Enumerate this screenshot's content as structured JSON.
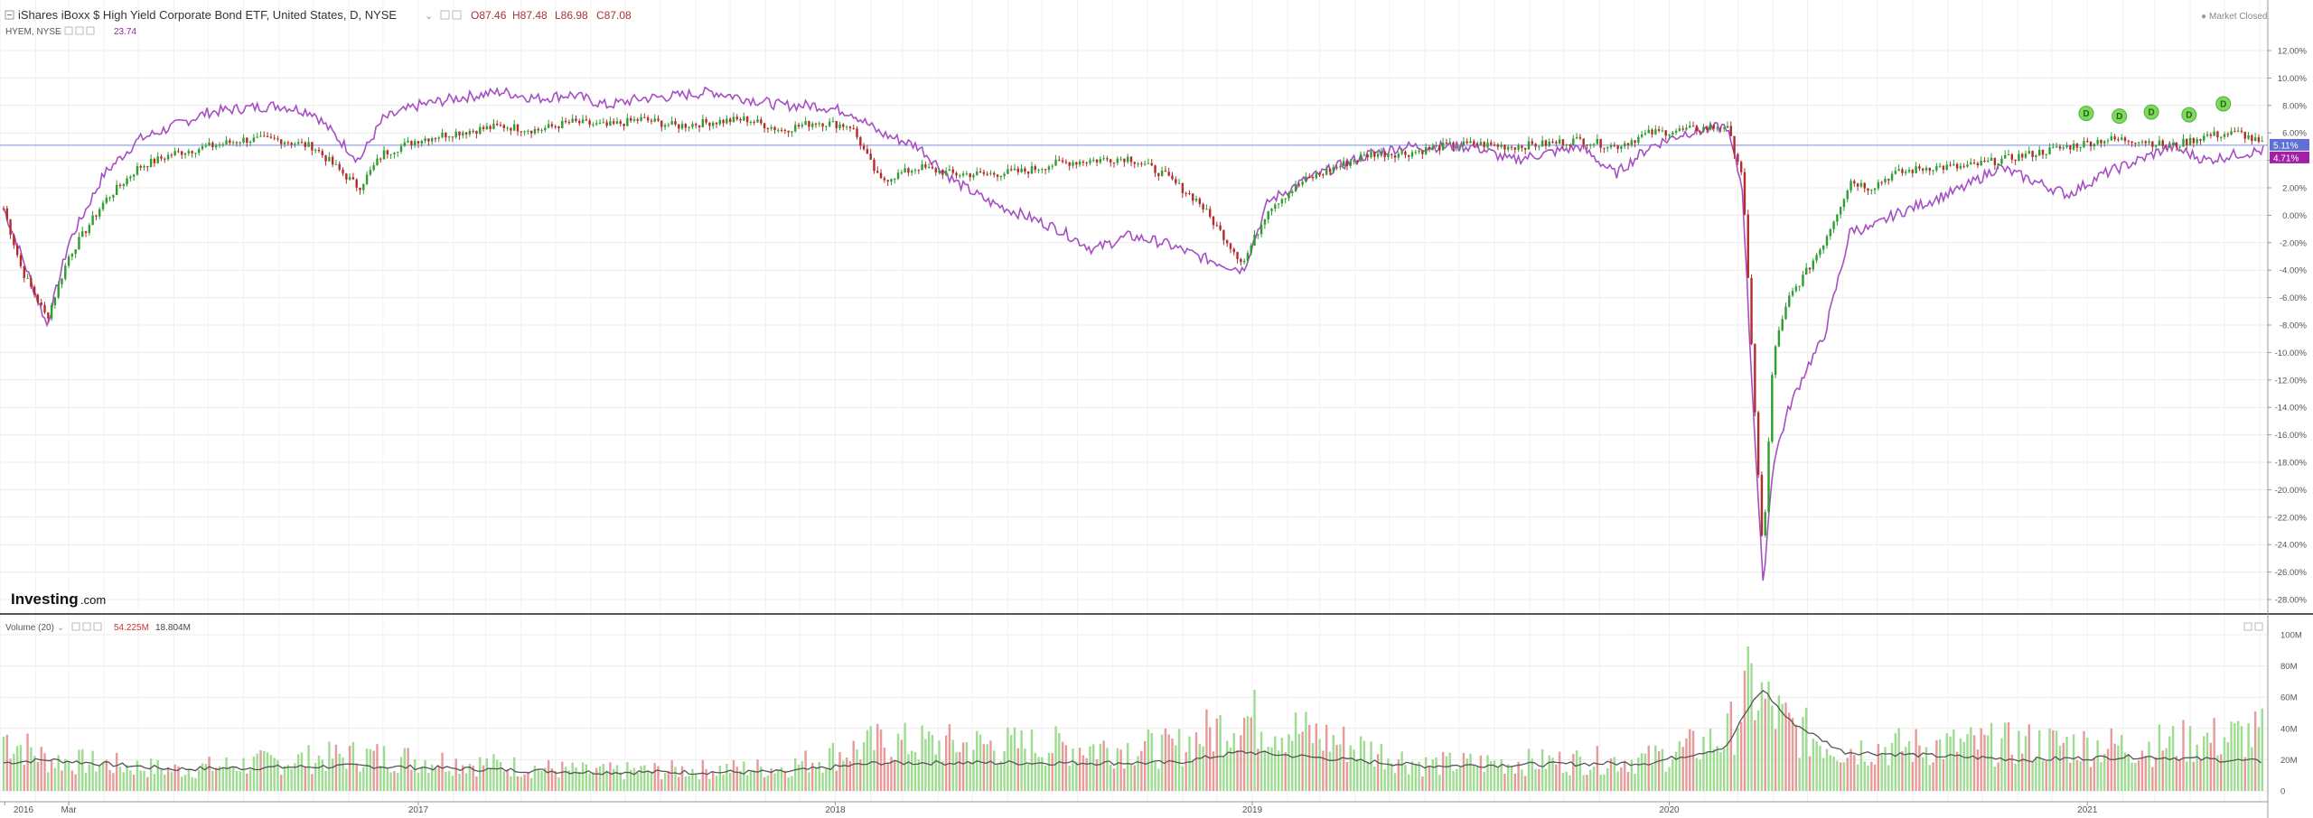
{
  "legend": {
    "main_title": "iShares iBoxx $ High Yield Corporate Bond ETF, United States, D, NYSE",
    "ohlc": {
      "o": "O87.46",
      "h": "H87.48",
      "l": "L86.98",
      "c": "C87.08"
    },
    "compare_label": "HYEM, NYSE",
    "compare_value": "23.74",
    "market_status": "Market Closed",
    "volume_label": "Volume (20)",
    "volume_value": "54.225M",
    "volume_ma_value": "18.804M"
  },
  "brand": {
    "bold": "Investing",
    "suffix": ".com"
  },
  "price_axis": {
    "ticks": [
      "12.00%",
      "10.00%",
      "8.00%",
      "6.00%",
      "4.00%",
      "2.00%",
      "0.00%",
      "-2.00%",
      "-4.00%",
      "-6.00%",
      "-8.00%",
      "-10.00%",
      "-12.00%",
      "-14.00%",
      "-16.00%",
      "-18.00%",
      "-20.00%",
      "-22.00%",
      "-24.00%",
      "-26.00%",
      "-28.00%"
    ],
    "last_main": "5.11%",
    "last_compare": "4.71%"
  },
  "volume_axis": {
    "ticks": [
      "100M",
      "80M",
      "60M",
      "40M",
      "20M",
      "0"
    ]
  },
  "time_axis": {
    "labels": [
      "2016",
      "Mar",
      "2017",
      "2018",
      "2019",
      "2020",
      "2021"
    ]
  },
  "dividend_marker": "D",
  "colors": {
    "up": "#2e9e2e",
    "down": "#b22c2c",
    "compare": "#a64fc4",
    "vol_up": "#9edc92",
    "vol_down": "#e89a9a",
    "ref_line": "#7d8fd6",
    "main_badge": "#5f6fd6",
    "compare_badge": "#a020a8",
    "dividend": "#7ed957"
  },
  "chart_data": {
    "type": "line",
    "title": "iShares iBoxx $ High Yield Corporate Bond ETF, United States, D, NYSE",
    "y_unit": "% change",
    "ylim": [
      -28,
      12
    ],
    "xlim": [
      "2016-01-04",
      "2021-06-04"
    ],
    "x_ticks": [
      "2016",
      "Mar",
      "2017",
      "2018",
      "2019",
      "2020",
      "2021"
    ],
    "grid": true,
    "series": [
      {
        "name": "iShares iBoxx $ High Yield Corporate Bond ETF",
        "style": "candlestick",
        "x": [
          "2016-01-04",
          "2016-01-20",
          "2016-02-11",
          "2016-03-01",
          "2016-04-01",
          "2016-05-01",
          "2016-06-01",
          "2016-07-01",
          "2016-08-01",
          "2016-09-01",
          "2016-10-01",
          "2016-11-10",
          "2016-12-01",
          "2017-01-01",
          "2017-02-01",
          "2017-03-15",
          "2017-04-15",
          "2017-05-15",
          "2017-06-15",
          "2017-07-15",
          "2017-08-15",
          "2017-09-15",
          "2017-10-15",
          "2017-11-15",
          "2017-12-15",
          "2018-01-15",
          "2018-02-09",
          "2018-03-15",
          "2018-04-15",
          "2018-05-15",
          "2018-06-15",
          "2018-07-15",
          "2018-08-15",
          "2018-09-15",
          "2018-10-15",
          "2018-11-15",
          "2018-12-24",
          "2019-01-15",
          "2019-02-15",
          "2019-03-15",
          "2019-04-15",
          "2019-05-15",
          "2019-06-15",
          "2019-07-15",
          "2019-08-15",
          "2019-09-15",
          "2019-10-15",
          "2019-11-15",
          "2019-12-15",
          "2020-01-15",
          "2020-02-20",
          "2020-03-05",
          "2020-03-12",
          "2020-03-23",
          "2020-04-01",
          "2020-04-15",
          "2020-05-01",
          "2020-05-15",
          "2020-06-08",
          "2020-06-25",
          "2020-07-15",
          "2020-08-15",
          "2020-09-15",
          "2020-10-15",
          "2020-11-15",
          "2020-12-15",
          "2021-01-15",
          "2021-02-15",
          "2021-03-15",
          "2021-04-15",
          "2021-05-15",
          "2021-06-04"
        ],
        "values": [
          0.5,
          -4,
          -7.5,
          -3,
          1,
          3.5,
          4.5,
          5,
          5.5,
          5.5,
          5,
          2,
          4.5,
          5.5,
          6,
          6.5,
          6.2,
          6.8,
          6.5,
          7,
          6.5,
          6.8,
          7,
          6.2,
          6.8,
          6.5,
          2.5,
          3.5,
          3,
          3,
          3.2,
          3.8,
          4,
          4.2,
          3,
          1,
          -3.5,
          0.5,
          2.5,
          3.5,
          4.5,
          4.5,
          5,
          5.2,
          5,
          5.2,
          5.5,
          5,
          6,
          6.2,
          6.5,
          3,
          -8,
          -25,
          -10,
          -6,
          -4,
          -2,
          2.5,
          2,
          3,
          3.5,
          3.5,
          4,
          4.5,
          5,
          5.5,
          5.5,
          5,
          5.8,
          6,
          5.1
        ]
      },
      {
        "name": "HYEM, NYSE",
        "style": "line",
        "x": [
          "2016-01-04",
          "2016-01-20",
          "2016-02-11",
          "2016-03-01",
          "2016-04-01",
          "2016-05-01",
          "2016-06-01",
          "2016-07-01",
          "2016-08-01",
          "2016-09-01",
          "2016-10-01",
          "2016-11-10",
          "2016-12-01",
          "2017-01-01",
          "2017-02-01",
          "2017-03-15",
          "2017-04-15",
          "2017-05-15",
          "2017-06-15",
          "2017-07-15",
          "2017-08-15",
          "2017-09-15",
          "2017-10-15",
          "2017-11-15",
          "2017-12-15",
          "2018-01-15",
          "2018-02-09",
          "2018-03-15",
          "2018-04-15",
          "2018-05-15",
          "2018-06-15",
          "2018-07-15",
          "2018-08-15",
          "2018-09-15",
          "2018-10-15",
          "2018-11-15",
          "2018-12-24",
          "2019-01-15",
          "2019-02-15",
          "2019-03-15",
          "2019-04-15",
          "2019-05-15",
          "2019-06-15",
          "2019-07-15",
          "2019-08-15",
          "2019-09-15",
          "2019-10-15",
          "2019-11-15",
          "2019-12-15",
          "2020-01-15",
          "2020-02-20",
          "2020-03-05",
          "2020-03-12",
          "2020-03-23",
          "2020-04-01",
          "2020-04-15",
          "2020-05-01",
          "2020-05-15",
          "2020-06-08",
          "2020-06-25",
          "2020-07-15",
          "2020-08-15",
          "2020-09-15",
          "2020-10-15",
          "2020-11-15",
          "2020-12-15",
          "2021-01-15",
          "2021-02-15",
          "2021-03-15",
          "2021-04-15",
          "2021-05-15",
          "2021-06-04"
        ],
        "values": [
          0.5,
          -3,
          -8,
          -2,
          3,
          5.5,
          6.5,
          7.5,
          7.8,
          8,
          7.5,
          4,
          7,
          8,
          8.5,
          9,
          8.5,
          8.8,
          8,
          8.5,
          8.7,
          9,
          8.5,
          8,
          8,
          7.5,
          6,
          5,
          2.5,
          1,
          0,
          -1,
          -2.5,
          -1.5,
          -2,
          -3,
          -4,
          1,
          2.5,
          3.5,
          4.5,
          5,
          5,
          5,
          4,
          4.5,
          5,
          3,
          5,
          6,
          6.5,
          2,
          -10,
          -27,
          -18,
          -14,
          -11,
          -9,
          -1,
          -1,
          0,
          1,
          2,
          3.5,
          2.5,
          1.5,
          3,
          4,
          5,
          4,
          4.5,
          4.7
        ]
      }
    ],
    "volume": {
      "name": "Volume (20)",
      "unit": "M shares",
      "ylim": [
        0,
        100
      ],
      "x": [
        "2016-01-04",
        "2016-02-11",
        "2016-06-01",
        "2016-11-10",
        "2017-06-01",
        "2017-11-15",
        "2018-02-09",
        "2018-10-25",
        "2018-12-24",
        "2019-06-01",
        "2019-12-15",
        "2020-02-20",
        "2020-03-12",
        "2020-03-23",
        "2020-04-15",
        "2020-06-01",
        "2020-11-10",
        "2021-02-15",
        "2021-06-04"
      ],
      "values": [
        52,
        30,
        20,
        34,
        18,
        22,
        45,
        40,
        70,
        25,
        30,
        50,
        98,
        85,
        60,
        40,
        45,
        42,
        54
      ],
      "ma_values": [
        18,
        20,
        14,
        16,
        12,
        12,
        18,
        18,
        25,
        16,
        18,
        28,
        55,
        65,
        45,
        25,
        20,
        22,
        18.8
      ]
    },
    "annotations": [
      {
        "label": "D",
        "x": "2020-12-31",
        "y": 6.5
      },
      {
        "label": "D",
        "x": "2021-01-29",
        "y": 6.3
      },
      {
        "label": "D",
        "x": "2021-02-26",
        "y": 6.6
      },
      {
        "label": "D",
        "x": "2021-03-31",
        "y": 6.4
      },
      {
        "label": "D",
        "x": "2021-04-30",
        "y": 7.2
      }
    ]
  }
}
